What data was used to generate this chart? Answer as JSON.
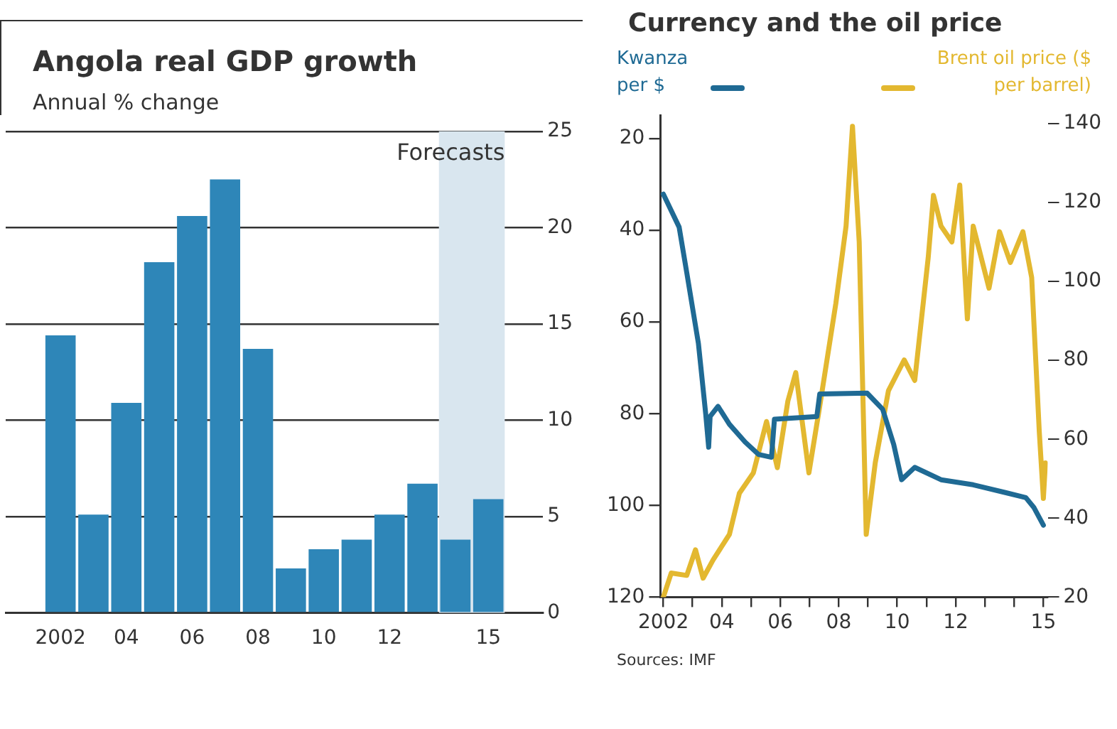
{
  "chart_data": [
    {
      "type": "bar",
      "title": "Angola real GDP growth",
      "subtitle": "Annual % change",
      "x": [
        2002,
        2003,
        2004,
        2005,
        2006,
        2007,
        2008,
        2009,
        2010,
        2011,
        2012,
        2013,
        2014,
        2015
      ],
      "values": [
        14.4,
        5.1,
        10.9,
        18.2,
        20.6,
        22.5,
        13.7,
        2.3,
        3.3,
        3.8,
        5.1,
        6.7,
        3.8,
        5.9
      ],
      "color": "#2e86b8",
      "xlim": [
        2001.5,
        2015.5
      ],
      "xticks": [
        {
          "value": 2002,
          "label": "2002"
        },
        {
          "value": 2004,
          "label": "04"
        },
        {
          "value": 2006,
          "label": "06"
        },
        {
          "value": 2008,
          "label": "08"
        },
        {
          "value": 2010,
          "label": "10"
        },
        {
          "value": 2012,
          "label": "12"
        },
        {
          "value": 2015,
          "label": "15"
        }
      ],
      "ylim": [
        0,
        25
      ],
      "yticks": [
        0,
        5,
        10,
        15,
        20,
        25
      ],
      "grid": "y",
      "bands": [
        {
          "axis": "x",
          "from": 2013.5,
          "to": 2015.5,
          "label": "Forecasts",
          "color": "#d9e6ef"
        }
      ]
    },
    {
      "type": "line",
      "title": "Currency and the oil price",
      "legend": "top",
      "series": [
        {
          "name": "Kwanza per $",
          "color": "#1f6a94",
          "axis": "y",
          "x": [
            2002.0,
            2002.54,
            2002.8,
            2003.2,
            2003.45,
            2003.55,
            2003.6,
            2003.87,
            2004.26,
            2004.8,
            2005.26,
            2005.7,
            2005.8,
            2007.25,
            2007.35,
            2008.97,
            2009.5,
            2009.88,
            2010.15,
            2010.6,
            2011.5,
            2012.6,
            2013.7,
            2014.4,
            2014.68,
            2015.0
          ],
          "values": [
            32.1,
            39.3,
            49.2,
            64.7,
            80.1,
            87.3,
            80.6,
            78.4,
            82.3,
            86.2,
            88.9,
            89.5,
            81.2,
            80.6,
            75.7,
            75.5,
            79.0,
            86.7,
            94.4,
            91.7,
            94.4,
            95.5,
            97.2,
            98.3,
            100.5,
            104.3
          ]
        },
        {
          "name": "Brent oil price ($ per barrel)",
          "color": "#e3b830",
          "axis": "y2",
          "x": [
            2002.0,
            2002.27,
            2002.8,
            2003.1,
            2003.36,
            2003.7,
            2004.26,
            2004.6,
            2005.08,
            2005.53,
            2005.9,
            2006.26,
            2006.53,
            2006.98,
            2007.35,
            2007.9,
            2008.25,
            2008.47,
            2008.7,
            2008.94,
            2009.25,
            2009.7,
            2010.24,
            2010.6,
            2011.06,
            2011.24,
            2011.5,
            2011.87,
            2012.14,
            2012.4,
            2012.6,
            2013.14,
            2013.5,
            2013.87,
            2014.3,
            2014.6,
            2014.86,
            2015.0,
            2015.07
          ],
          "values": [
            20,
            26.1,
            25.5,
            32,
            24.8,
            29.4,
            35.9,
            46.3,
            51.5,
            64.5,
            52.8,
            69.7,
            76.9,
            51.5,
            68.4,
            94.4,
            114,
            139.3,
            110,
            35.9,
            54.1,
            72.3,
            80.1,
            74.9,
            106,
            121.8,
            114,
            110,
            124.4,
            90.5,
            114,
            98.3,
            112.6,
            104.8,
            112.6,
            101,
            61.9,
            45,
            54
          ]
        }
      ],
      "xlim": [
        2001.9,
        2015.15
      ],
      "xticks": [
        {
          "value": 2002,
          "label": "2002"
        },
        {
          "value": 2003,
          "label": null
        },
        {
          "value": 2004,
          "label": "04"
        },
        {
          "value": 2005,
          "label": null
        },
        {
          "value": 2006,
          "label": "06"
        },
        {
          "value": 2007,
          "label": null
        },
        {
          "value": 2008,
          "label": "08"
        },
        {
          "value": 2009,
          "label": null
        },
        {
          "value": 2010,
          "label": "10"
        },
        {
          "value": 2011,
          "label": null
        },
        {
          "value": 2012,
          "label": "12"
        },
        {
          "value": 2013,
          "label": null
        },
        {
          "value": 2014,
          "label": null
        },
        {
          "value": 2015,
          "label": "15"
        }
      ],
      "ylim": [
        120,
        15
      ],
      "yticks": [
        20,
        40,
        60,
        80,
        100,
        120
      ],
      "y2lim": [
        20,
        142
      ],
      "y2ticks": [
        20,
        40,
        60,
        80,
        100,
        120,
        140
      ],
      "annotations": [
        "Sources: IMF"
      ]
    }
  ]
}
